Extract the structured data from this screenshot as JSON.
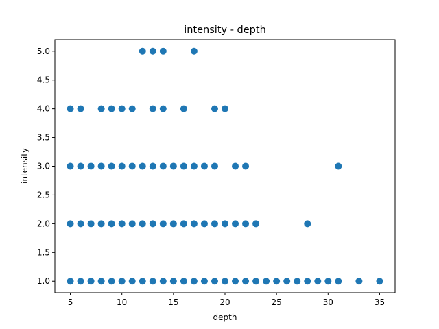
{
  "chart_data": {
    "type": "scatter",
    "title": "intensity - depth",
    "xlabel": "depth",
    "ylabel": "intensity",
    "xlim": [
      3.5,
      36.5
    ],
    "ylim": [
      0.8,
      5.2
    ],
    "xticks": [
      "5",
      "10",
      "15",
      "20",
      "25",
      "30",
      "35"
    ],
    "yticks": [
      "1.0",
      "1.5",
      "2.0",
      "2.5",
      "3.0",
      "3.5",
      "4.0",
      "4.5",
      "5.0"
    ],
    "grid": false,
    "legend": "none",
    "color": "#1f77b4",
    "points": [
      [
        12,
        5
      ],
      [
        13,
        5
      ],
      [
        14,
        5
      ],
      [
        17,
        5
      ],
      [
        5,
        4
      ],
      [
        6,
        4
      ],
      [
        8,
        4
      ],
      [
        9,
        4
      ],
      [
        10,
        4
      ],
      [
        11,
        4
      ],
      [
        13,
        4
      ],
      [
        14,
        4
      ],
      [
        16,
        4
      ],
      [
        19,
        4
      ],
      [
        20,
        4
      ],
      [
        5,
        3
      ],
      [
        6,
        3
      ],
      [
        7,
        3
      ],
      [
        8,
        3
      ],
      [
        9,
        3
      ],
      [
        10,
        3
      ],
      [
        11,
        3
      ],
      [
        12,
        3
      ],
      [
        13,
        3
      ],
      [
        14,
        3
      ],
      [
        15,
        3
      ],
      [
        16,
        3
      ],
      [
        17,
        3
      ],
      [
        18,
        3
      ],
      [
        19,
        3
      ],
      [
        21,
        3
      ],
      [
        22,
        3
      ],
      [
        31,
        3
      ],
      [
        5,
        2
      ],
      [
        6,
        2
      ],
      [
        7,
        2
      ],
      [
        8,
        2
      ],
      [
        9,
        2
      ],
      [
        10,
        2
      ],
      [
        11,
        2
      ],
      [
        12,
        2
      ],
      [
        13,
        2
      ],
      [
        14,
        2
      ],
      [
        15,
        2
      ],
      [
        16,
        2
      ],
      [
        17,
        2
      ],
      [
        18,
        2
      ],
      [
        19,
        2
      ],
      [
        20,
        2
      ],
      [
        21,
        2
      ],
      [
        22,
        2
      ],
      [
        23,
        2
      ],
      [
        28,
        2
      ],
      [
        5,
        1
      ],
      [
        6,
        1
      ],
      [
        7,
        1
      ],
      [
        8,
        1
      ],
      [
        9,
        1
      ],
      [
        10,
        1
      ],
      [
        11,
        1
      ],
      [
        12,
        1
      ],
      [
        13,
        1
      ],
      [
        14,
        1
      ],
      [
        15,
        1
      ],
      [
        16,
        1
      ],
      [
        17,
        1
      ],
      [
        18,
        1
      ],
      [
        19,
        1
      ],
      [
        20,
        1
      ],
      [
        21,
        1
      ],
      [
        22,
        1
      ],
      [
        23,
        1
      ],
      [
        24,
        1
      ],
      [
        25,
        1
      ],
      [
        26,
        1
      ],
      [
        27,
        1
      ],
      [
        28,
        1
      ],
      [
        29,
        1
      ],
      [
        30,
        1
      ],
      [
        31,
        1
      ],
      [
        33,
        1
      ],
      [
        35,
        1
      ]
    ]
  }
}
